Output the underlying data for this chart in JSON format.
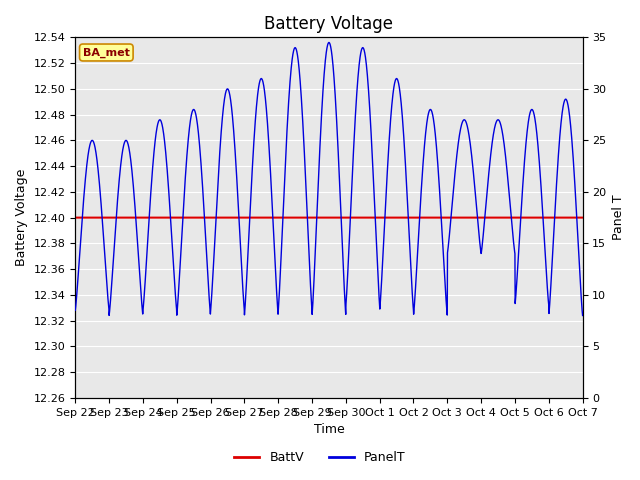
{
  "title": "Battery Voltage",
  "xlabel": "Time",
  "ylabel_left": "Battery Voltage",
  "ylabel_right": "Panel T",
  "ylim_left": [
    12.26,
    12.54
  ],
  "ylim_right": [
    0,
    35
  ],
  "yticks_left": [
    12.26,
    12.28,
    12.3,
    12.32,
    12.34,
    12.36,
    12.38,
    12.4,
    12.42,
    12.44,
    12.46,
    12.48,
    12.5,
    12.52,
    12.54
  ],
  "yticks_right": [
    0,
    5,
    10,
    15,
    20,
    25,
    30,
    35
  ],
  "x_tick_labels": [
    "Sep 22",
    "Sep 23",
    "Sep 24",
    "Sep 25",
    "Sep 26",
    "Sep 27",
    "Sep 28",
    "Sep 29",
    "Sep 30",
    "Oct 1",
    "Oct 2",
    "Oct 3",
    "Oct 4",
    "Oct 5",
    "Oct 6",
    "Oct 7"
  ],
  "battv_value": 12.4,
  "battv_color": "#dd0000",
  "panelt_color": "#0000dd",
  "fig_bg_color": "#ffffff",
  "plot_bg_color": "#e8e8e8",
  "grid_color": "#ffffff",
  "annotation_text": "BA_met",
  "annotation_bg": "#ffff99",
  "annotation_border": "#cc8800",
  "title_fontsize": 12,
  "axis_label_fontsize": 9,
  "tick_fontsize": 8,
  "legend_fontsize": 9,
  "num_days": 15,
  "day_peaks": [
    25,
    25,
    27,
    28,
    30,
    31,
    34,
    34.5,
    34,
    31,
    28,
    27,
    27,
    28,
    29
  ],
  "day_mins": [
    8.5,
    8,
    8.5,
    8,
    8.5,
    8,
    8.5,
    8,
    9,
    8.5,
    8,
    14,
    14,
    9,
    8
  ]
}
